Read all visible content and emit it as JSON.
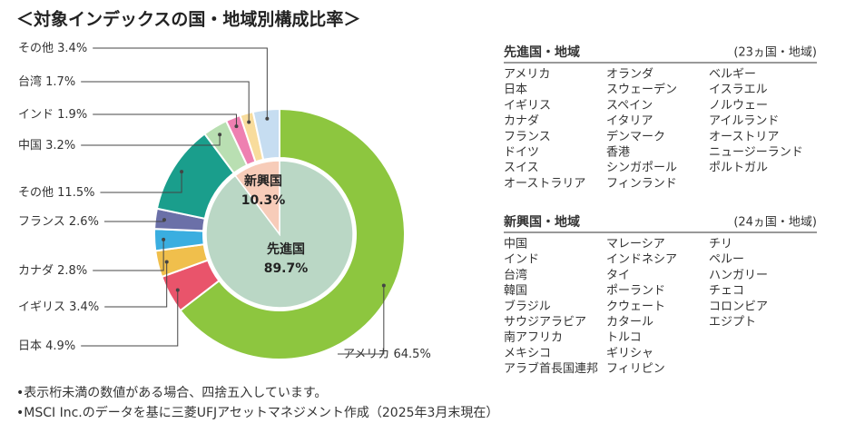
{
  "chart_data": {
    "type": "donut",
    "title": "＜対象インデックスの国・地域別構成比率＞",
    "categories": [
      "アメリカ",
      "日本",
      "イギリス",
      "カナダ",
      "フランス",
      "その他",
      "中国",
      "インド",
      "台湾",
      "その他"
    ],
    "values": [
      64.5,
      4.9,
      3.4,
      2.8,
      2.6,
      11.5,
      3.2,
      1.9,
      1.7,
      3.4
    ],
    "value_labels": [
      "64.5%",
      "4.9%",
      "3.4%",
      "2.8%",
      "2.6%",
      "11.5%",
      "3.2%",
      "1.9%",
      "1.7%",
      "3.4%"
    ],
    "colors": [
      "#8dc63f",
      "#e9546b",
      "#f0bf4c",
      "#3aaee0",
      "#6b70a8",
      "#1a9e8c",
      "#b9dfb2",
      "#ee80b1",
      "#f8dc9c",
      "#c6ddf1"
    ],
    "inner": {
      "categories": [
        "先進国",
        "新興国"
      ],
      "values": [
        89.7,
        10.3
      ],
      "value_labels": [
        "89.7%",
        "10.3%"
      ],
      "colors": [
        "#bad7c5",
        "#f7ccb9"
      ]
    }
  },
  "developed": {
    "title": "先進国・地域",
    "count": "(23ヵ国・地域)",
    "columns": [
      [
        "アメリカ",
        "日本",
        "イギリス",
        "カナダ",
        "フランス",
        "ドイツ",
        "スイス",
        "オーストラリア"
      ],
      [
        "オランダ",
        "スウェーデン",
        "スペイン",
        "イタリア",
        "デンマーク",
        "香港",
        "シンガポール",
        "フィンランド"
      ],
      [
        "ベルギー",
        "イスラエル",
        "ノルウェー",
        "アイルランド",
        "オーストリア",
        "ニュージーランド",
        "ポルトガル"
      ]
    ]
  },
  "emerging": {
    "title": "新興国・地域",
    "count": "(24ヵ国・地域)",
    "columns": [
      [
        "中国",
        "インド",
        "台湾",
        "韓国",
        "ブラジル",
        "サウジアラビア",
        "南アフリカ",
        "メキシコ",
        "アラブ首長国連邦"
      ],
      [
        "マレーシア",
        "インドネシア",
        "タイ",
        "ポーランド",
        "クウェート",
        "カタール",
        "トルコ",
        "ギリシャ",
        "フィリピン"
      ],
      [
        "チリ",
        "ペルー",
        "ハンガリー",
        "チェコ",
        "コロンビア",
        "エジプト"
      ]
    ]
  },
  "notes": [
    "•表示桁未満の数値がある場合、四捨五入しています。",
    "•MSCI Inc.のデータを基に三菱UFJアセットマネジメント作成（2025年3月末現在）"
  ]
}
